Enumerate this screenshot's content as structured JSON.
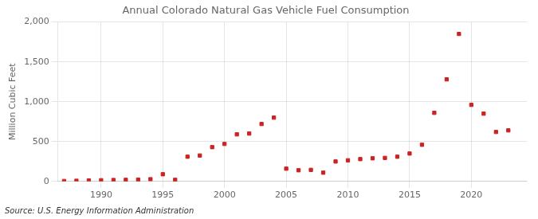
{
  "chart_data": {
    "type": "scatter",
    "title": "Annual Colorado Natural Gas Vehicle Fuel Consumption",
    "y_label": "Million Cubic Feet",
    "annotations": [
      "Source: U.S. Energy Information Administration"
    ],
    "x": [
      1987,
      1988,
      1989,
      1990,
      1991,
      1992,
      1993,
      1994,
      1995,
      1996,
      1997,
      1998,
      1999,
      2000,
      2001,
      2002,
      2003,
      2004,
      2005,
      2006,
      2007,
      2008,
      2009,
      2010,
      2011,
      2012,
      2013,
      2014,
      2015,
      2016,
      2017,
      2018,
      2019,
      2020,
      2021,
      2022,
      2023
    ],
    "values": [
      5,
      8,
      12,
      15,
      18,
      20,
      22,
      28,
      90,
      20,
      310,
      325,
      430,
      470,
      590,
      600,
      720,
      800,
      160,
      140,
      145,
      110,
      250,
      265,
      280,
      290,
      295,
      310,
      350,
      460,
      860,
      1280,
      1850,
      960,
      850,
      620,
      640
    ],
    "color": "#cc2222",
    "marker": "square",
    "xlim": [
      1986.5,
      2024.5
    ],
    "xticks": [
      1990,
      1995,
      2000,
      2005,
      2010,
      2015,
      2020
    ],
    "ylim": [
      0,
      2000
    ],
    "yticks": [
      0,
      500,
      {
        "value": 1000,
        "label": "1,000"
      },
      {
        "value": 1500,
        "label": "1,500"
      },
      {
        "value": 2000,
        "label": "2,000"
      }
    ],
    "grid": true
  }
}
